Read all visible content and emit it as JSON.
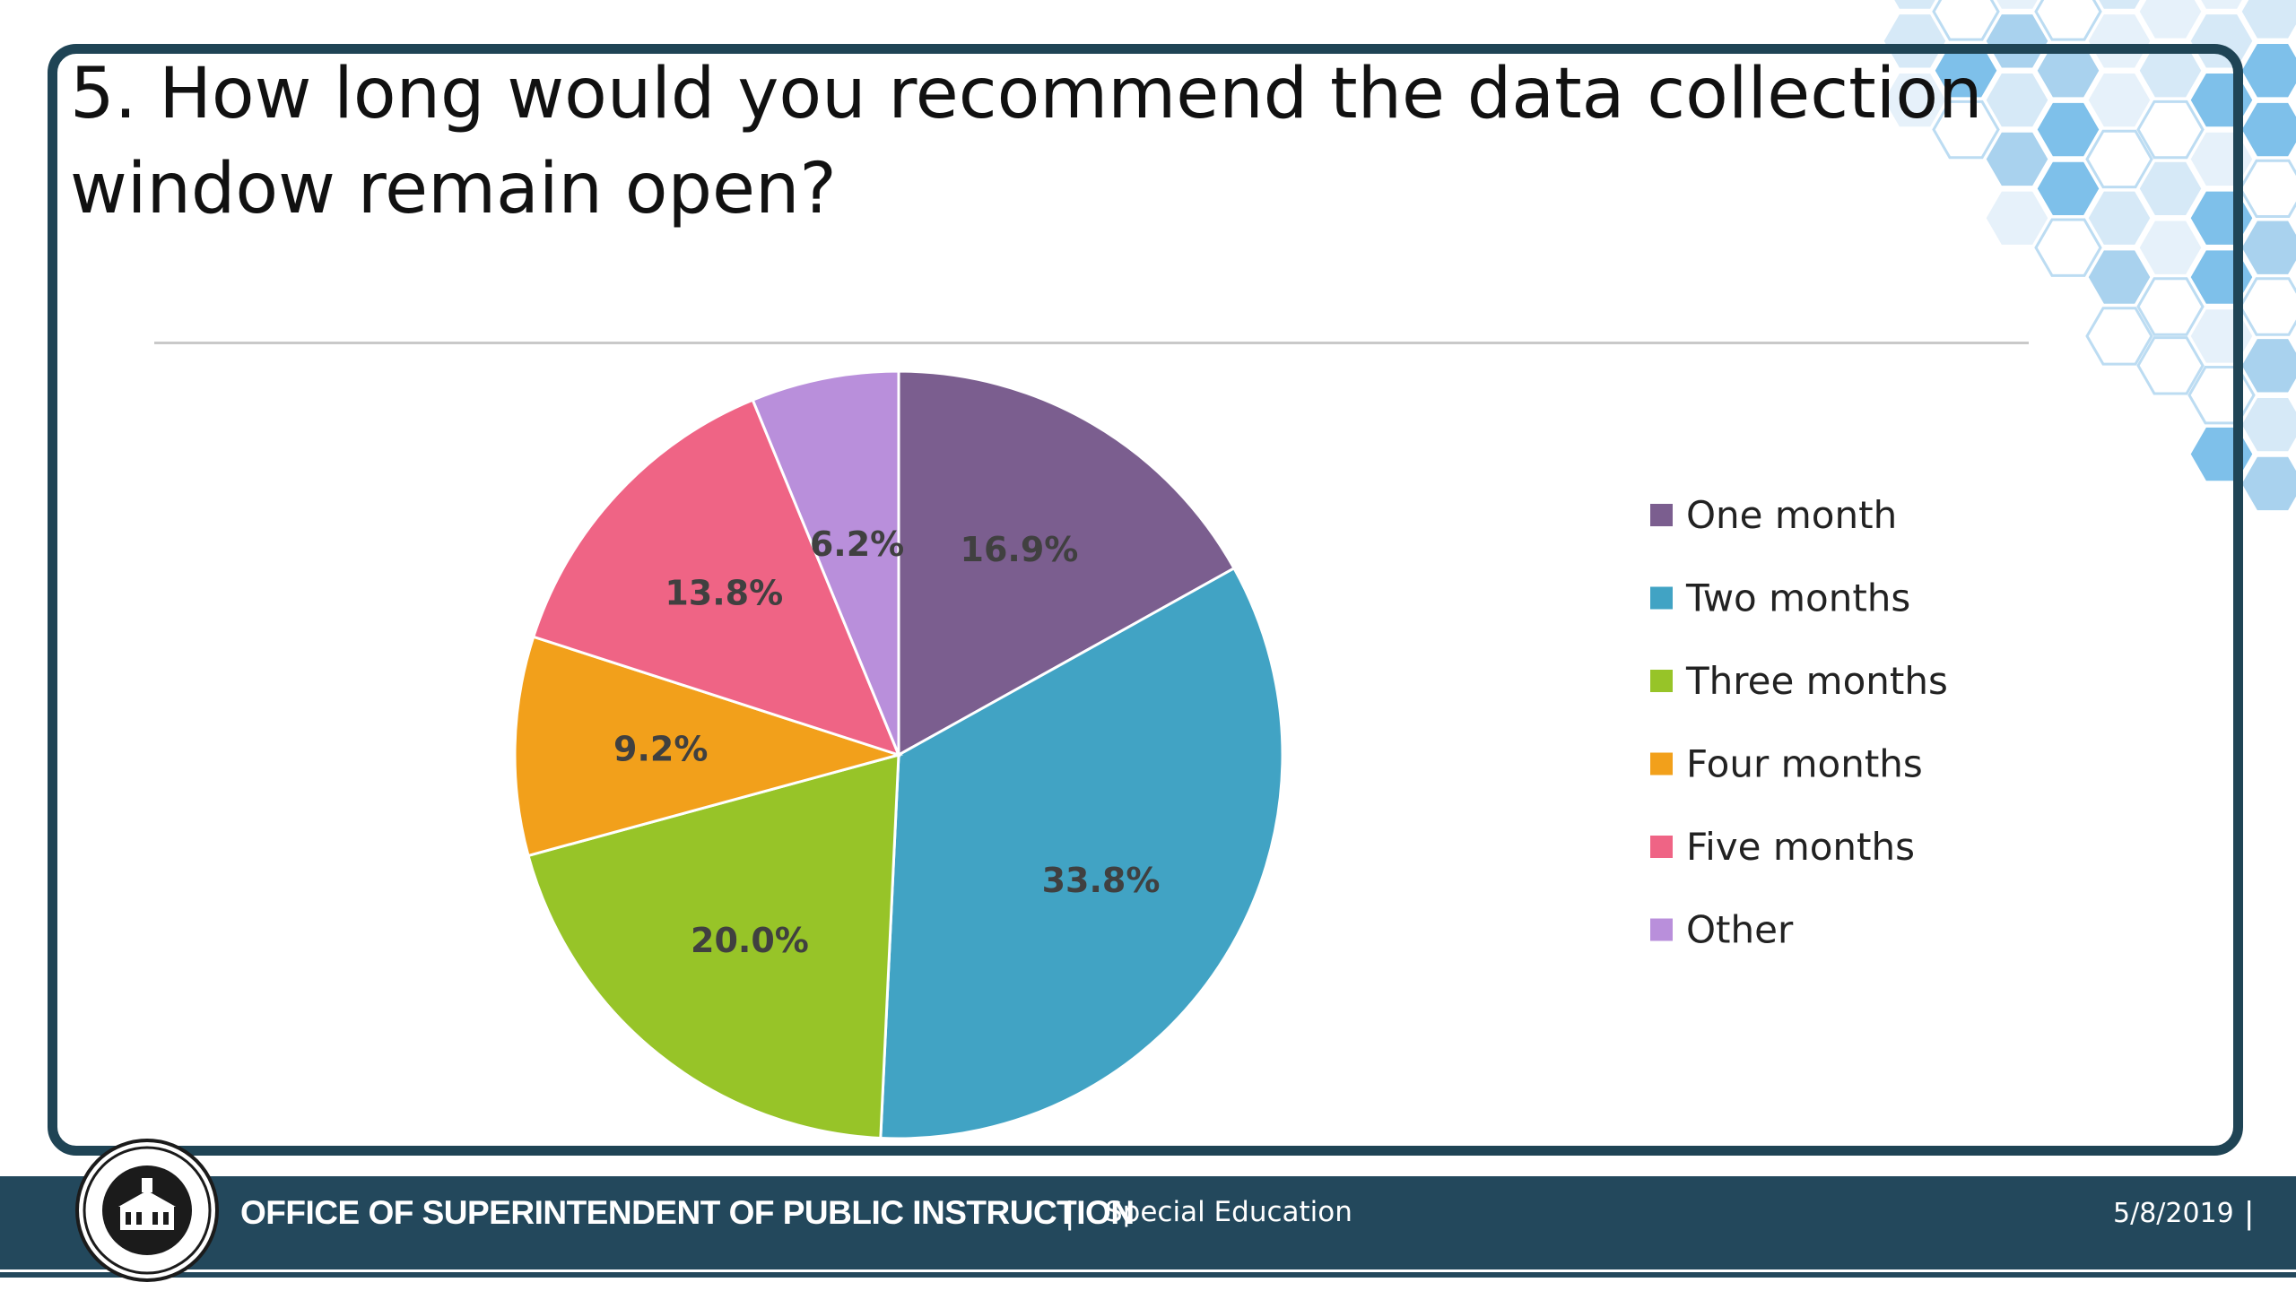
{
  "slide": {
    "title": "5. How long would you recommend the data collection window remain open?"
  },
  "footer": {
    "agency": "OFFICE OF SUPERINTENDENT OF PUBLIC INSTRUCTION",
    "separator": "|",
    "department": "Special Education",
    "date": "5/8/2019",
    "seal_name": "seal-icon"
  },
  "colors": {
    "frame": "#1f4455",
    "footer": "#23485c",
    "hex_light": "#d6e9f7",
    "hex_mid": "#a9d2ee",
    "hex_dark": "#7ec0ea"
  },
  "chart_data": {
    "type": "pie",
    "title": "",
    "categories": [
      "One month",
      "Two months",
      "Three months",
      "Four months",
      "Five months",
      "Other"
    ],
    "values": [
      16.9,
      33.8,
      20.0,
      9.2,
      13.8,
      6.2
    ],
    "labels": [
      "16.9%",
      "33.8%",
      "20.0%",
      "9.2%",
      "13.8%",
      "6.2%"
    ],
    "colors": [
      "#7b5e8f",
      "#41a3c4",
      "#97c428",
      "#f2a01b",
      "#ef6485",
      "#b98fdb"
    ],
    "legend_position": "right",
    "start_angle": "12 o'clock",
    "direction": "clockwise"
  }
}
